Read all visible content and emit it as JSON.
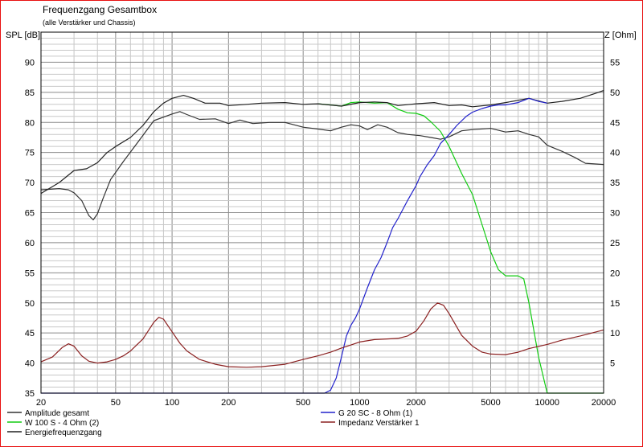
{
  "chart_data": {
    "type": "line",
    "title": "Frequenzgang Gesamtbox",
    "subtitle": "(alle Verstärker und Chassis)",
    "ylabel_left": "SPL [dB]",
    "ylabel_right": "Z [Ohm]",
    "x_scale": "log",
    "xlim": [
      20,
      20000
    ],
    "ylim_left": [
      35,
      95
    ],
    "ylim_right": [
      0,
      60
    ],
    "x_ticks": [
      20,
      50,
      100,
      200,
      500,
      1000,
      2000,
      5000,
      10000,
      20000
    ],
    "x_tick_labels": [
      "20",
      "50",
      "100",
      "200",
      "500",
      "1000",
      "2000",
      "5000",
      "10000",
      "20000"
    ],
    "y_ticks_left": [
      35,
      40,
      45,
      50,
      55,
      60,
      65,
      70,
      75,
      80,
      85,
      90
    ],
    "y_tick_labels_left": [
      "35",
      "40",
      "45",
      "50",
      "55",
      "60",
      "65",
      "70",
      "75",
      "80",
      "85",
      "90"
    ],
    "y_ticks_right": [
      5,
      10,
      15,
      20,
      25,
      30,
      35,
      40,
      45,
      50,
      55
    ],
    "y_tick_labels_right": [
      "5",
      "10",
      "15",
      "20",
      "25",
      "30",
      "35",
      "40",
      "45",
      "50",
      "55"
    ],
    "grid": true,
    "legend_placement": "bottom",
    "series": [
      {
        "name": "Amplitude gesamt",
        "color": "#333333",
        "axis": "left",
        "points": [
          [
            20,
            68.8
          ],
          [
            25,
            69
          ],
          [
            28,
            68.8
          ],
          [
            30,
            68.3
          ],
          [
            33,
            67
          ],
          [
            36,
            64.5
          ],
          [
            38,
            63.8
          ],
          [
            40,
            64.8
          ],
          [
            43,
            67.5
          ],
          [
            47,
            70.5
          ],
          [
            55,
            73.5
          ],
          [
            65,
            76.5
          ],
          [
            80,
            80.3
          ],
          [
            100,
            81.4
          ],
          [
            110,
            81.8
          ],
          [
            120,
            81.3
          ],
          [
            140,
            80.5
          ],
          [
            170,
            80.6
          ],
          [
            200,
            79.8
          ],
          [
            230,
            80.4
          ],
          [
            270,
            79.8
          ],
          [
            330,
            80
          ],
          [
            400,
            80
          ],
          [
            500,
            79.2
          ],
          [
            600,
            78.9
          ],
          [
            700,
            78.6
          ],
          [
            800,
            79.2
          ],
          [
            900,
            79.6
          ],
          [
            1000,
            79.4
          ],
          [
            1100,
            78.8
          ],
          [
            1250,
            79.6
          ],
          [
            1400,
            79.2
          ],
          [
            1600,
            78.3
          ],
          [
            1800,
            78
          ],
          [
            2100,
            77.8
          ],
          [
            2400,
            77.5
          ],
          [
            2700,
            77.2
          ],
          [
            3000,
            77.6
          ],
          [
            3500,
            78.6
          ],
          [
            4000,
            78.8
          ],
          [
            5000,
            79
          ],
          [
            6000,
            78.4
          ],
          [
            7000,
            78.6
          ],
          [
            8000,
            78
          ],
          [
            9000,
            77.6
          ],
          [
            10000,
            76.2
          ],
          [
            12000,
            75.2
          ],
          [
            14000,
            74.2
          ],
          [
            16000,
            73.2
          ],
          [
            20000,
            73
          ]
        ]
      },
      {
        "name": "W 100 S - 4 Ohm (2)",
        "color": "#11cc11",
        "axis": "left",
        "points": [
          [
            600,
            83.1
          ],
          [
            700,
            82.9
          ],
          [
            800,
            82.7
          ],
          [
            900,
            83.3
          ],
          [
            1000,
            83.4
          ],
          [
            1200,
            83.2
          ],
          [
            1400,
            83.3
          ],
          [
            1600,
            82.2
          ],
          [
            1800,
            81.6
          ],
          [
            2000,
            81.5
          ],
          [
            2200,
            81.1
          ],
          [
            2400,
            80.1
          ],
          [
            2700,
            78.5
          ],
          [
            3000,
            76
          ],
          [
            3500,
            71.5
          ],
          [
            4000,
            68
          ],
          [
            4500,
            63
          ],
          [
            5000,
            58.5
          ],
          [
            5500,
            55.5
          ],
          [
            6000,
            54.5
          ],
          [
            7000,
            54.5
          ],
          [
            7500,
            54
          ],
          [
            8000,
            50
          ],
          [
            9000,
            41
          ],
          [
            10000,
            35
          ],
          [
            20000,
            35
          ]
        ]
      },
      {
        "name": "Energiefrequenzgang",
        "color": "#222222",
        "axis": "left",
        "points": [
          [
            20,
            68.2
          ],
          [
            25,
            70
          ],
          [
            30,
            72
          ],
          [
            35,
            72.3
          ],
          [
            40,
            73.3
          ],
          [
            45,
            75
          ],
          [
            50,
            76
          ],
          [
            60,
            77.5
          ],
          [
            70,
            79.5
          ],
          [
            80,
            81.8
          ],
          [
            90,
            83.2
          ],
          [
            100,
            84
          ],
          [
            115,
            84.5
          ],
          [
            130,
            84
          ],
          [
            150,
            83.2
          ],
          [
            180,
            83.2
          ],
          [
            200,
            82.8
          ],
          [
            250,
            83
          ],
          [
            300,
            83.2
          ],
          [
            400,
            83.3
          ],
          [
            500,
            83
          ],
          [
            600,
            83.1
          ],
          [
            800,
            82.7
          ],
          [
            1000,
            83.3
          ],
          [
            1200,
            83.4
          ],
          [
            1400,
            83.3
          ],
          [
            1600,
            82.8
          ],
          [
            2000,
            83.1
          ],
          [
            2500,
            83.3
          ],
          [
            3000,
            82.8
          ],
          [
            3500,
            82.9
          ],
          [
            4000,
            82.6
          ],
          [
            5000,
            82.9
          ],
          [
            6000,
            83.3
          ],
          [
            8000,
            84
          ],
          [
            10000,
            83.2
          ],
          [
            12000,
            83.5
          ],
          [
            15000,
            84
          ],
          [
            18000,
            84.8
          ],
          [
            20000,
            85.3
          ]
        ]
      },
      {
        "name": "G 20 SC - 8 Ohm (1)",
        "color": "#2222cc",
        "axis": "left",
        "points": [
          [
            20,
            35
          ],
          [
            500,
            35
          ],
          [
            650,
            35
          ],
          [
            700,
            35.5
          ],
          [
            750,
            37.5
          ],
          [
            800,
            41
          ],
          [
            850,
            44.5
          ],
          [
            900,
            46.3
          ],
          [
            950,
            47.5
          ],
          [
            1000,
            49
          ],
          [
            1100,
            52.5
          ],
          [
            1200,
            55.5
          ],
          [
            1300,
            57.5
          ],
          [
            1400,
            60
          ],
          [
            1500,
            62.5
          ],
          [
            1600,
            64
          ],
          [
            1800,
            67
          ],
          [
            2000,
            69.5
          ],
          [
            2100,
            71
          ],
          [
            2300,
            73
          ],
          [
            2500,
            74.5
          ],
          [
            2700,
            76.5
          ],
          [
            3000,
            78
          ],
          [
            3300,
            79.5
          ],
          [
            3700,
            81
          ],
          [
            4000,
            81.7
          ],
          [
            4500,
            82.3
          ],
          [
            5000,
            82.7
          ],
          [
            5500,
            82.9
          ],
          [
            6000,
            82.9
          ],
          [
            7000,
            83.3
          ],
          [
            8000,
            84
          ],
          [
            9000,
            83.5
          ],
          [
            10000,
            83.2
          ]
        ]
      },
      {
        "name": "Impedanz Verstärker 1",
        "color": "#8b2020",
        "axis": "right",
        "points": [
          [
            20,
            5.2
          ],
          [
            23,
            6
          ],
          [
            26,
            7.6
          ],
          [
            28,
            8.2
          ],
          [
            30,
            7.8
          ],
          [
            33,
            6.2
          ],
          [
            36,
            5.3
          ],
          [
            40,
            5
          ],
          [
            45,
            5.2
          ],
          [
            50,
            5.6
          ],
          [
            55,
            6.2
          ],
          [
            60,
            7
          ],
          [
            70,
            9
          ],
          [
            80,
            11.8
          ],
          [
            85,
            12.6
          ],
          [
            90,
            12.3
          ],
          [
            100,
            10.2
          ],
          [
            110,
            8.3
          ],
          [
            120,
            7
          ],
          [
            140,
            5.6
          ],
          [
            170,
            4.8
          ],
          [
            200,
            4.4
          ],
          [
            250,
            4.3
          ],
          [
            300,
            4.4
          ],
          [
            400,
            4.8
          ],
          [
            500,
            5.6
          ],
          [
            600,
            6.2
          ],
          [
            700,
            6.8
          ],
          [
            800,
            7.5
          ],
          [
            900,
            8
          ],
          [
            1000,
            8.5
          ],
          [
            1200,
            8.9
          ],
          [
            1400,
            9
          ],
          [
            1600,
            9.1
          ],
          [
            1800,
            9.5
          ],
          [
            2000,
            10.3
          ],
          [
            2200,
            12
          ],
          [
            2400,
            14
          ],
          [
            2600,
            15
          ],
          [
            2800,
            14.6
          ],
          [
            3000,
            13.2
          ],
          [
            3500,
            9.6
          ],
          [
            4000,
            7.8
          ],
          [
            4500,
            6.8
          ],
          [
            5000,
            6.5
          ],
          [
            6000,
            6.4
          ],
          [
            7000,
            6.8
          ],
          [
            8000,
            7.4
          ],
          [
            10000,
            8.1
          ],
          [
            12000,
            8.8
          ],
          [
            15000,
            9.5
          ],
          [
            20000,
            10.5
          ]
        ]
      }
    ]
  }
}
